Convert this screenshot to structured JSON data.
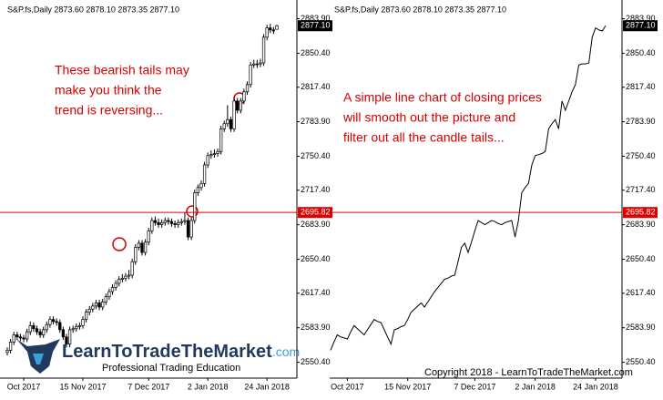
{
  "chart_data": [
    {
      "type": "candlestick",
      "header": "S&P.fs,Daily 2873.60 2878.10 2873.35 2877.10",
      "annotation": [
        "These bearish tails may",
        "make you think the",
        "trend is reversing..."
      ],
      "logo": {
        "name": "LearnToTradeTheMarket",
        "domain": ".com",
        "tagline": "Professional Trading Education"
      },
      "categories": [
        null,
        null,
        null,
        null,
        null,
        "Oct 2017",
        null,
        null,
        null,
        null,
        null,
        null,
        null,
        null,
        null,
        null,
        null,
        null,
        null,
        null,
        null,
        null,
        null,
        "15 Nov 2017",
        null,
        null,
        null,
        null,
        null,
        null,
        null,
        null,
        null,
        null,
        null,
        null,
        null,
        null,
        null,
        null,
        null,
        null,
        null,
        "7 Dec 2017",
        null,
        null,
        null,
        null,
        null,
        null,
        null,
        null,
        null,
        null,
        null,
        null,
        null,
        null,
        null,
        null,
        null,
        "2 Jan 2018",
        null,
        null,
        null,
        null,
        null,
        null,
        null,
        null,
        null,
        null,
        null,
        null,
        null,
        null,
        null,
        null,
        null,
        "24 Jan 2018",
        null,
        null,
        null
      ],
      "open": [
        2560,
        2562,
        2570,
        2577,
        2575,
        2574,
        2573,
        2580,
        2586,
        2583,
        2580,
        2577,
        2582,
        2587,
        2592,
        2590,
        2589,
        2582,
        2575,
        2568,
        2582,
        2583,
        2585,
        2586,
        2592,
        2599,
        2602,
        2605,
        2608,
        2604,
        2609,
        2614,
        2619,
        2623,
        2627,
        2631,
        2632,
        2634,
        2635,
        2648,
        2662,
        2666,
        2657,
        2667,
        2678,
        2688,
        2686,
        2684,
        2686,
        2688,
        2687,
        2685,
        2684,
        2686,
        2687,
        2688,
        2672,
        2688,
        2715,
        2720,
        2724,
        2742,
        2751,
        2752,
        2753,
        2755,
        2777,
        2782,
        2786,
        2777,
        2804,
        2795,
        2804,
        2813,
        2820,
        2839,
        2840,
        2840,
        2841,
        2866,
        2875,
        2873,
        2873.6
      ],
      "high": [
        2565,
        2573,
        2580,
        2580,
        2578,
        2577,
        2583,
        2590,
        2589,
        2586,
        2583,
        2585,
        2590,
        2595,
        2595,
        2593,
        2592,
        2585,
        2578,
        2585,
        2586,
        2588,
        2589,
        2595,
        2602,
        2605,
        2608,
        2611,
        2611,
        2612,
        2617,
        2622,
        2626,
        2630,
        2634,
        2636,
        2637,
        2640,
        2651,
        2665,
        2669,
        2669,
        2670,
        2681,
        2691,
        2692,
        2690,
        2689,
        2691,
        2691,
        2690,
        2688,
        2689,
        2690,
        2696,
        2691,
        2691,
        2718,
        2723,
        2727,
        2745,
        2754,
        2756,
        2757,
        2758,
        2780,
        2785,
        2800,
        2789,
        2807,
        2807,
        2807,
        2816,
        2823,
        2842,
        2844,
        2844,
        2845,
        2869,
        2878,
        2879,
        2876,
        2878.1
      ],
      "low": [
        2557,
        2559,
        2567,
        2572,
        2571,
        2570,
        2570,
        2577,
        2580,
        2577,
        2574,
        2574,
        2579,
        2584,
        2587,
        2586,
        2579,
        2572,
        2565,
        2565,
        2579,
        2580,
        2582,
        2583,
        2589,
        2596,
        2599,
        2602,
        2601,
        2601,
        2606,
        2611,
        2616,
        2620,
        2624,
        2628,
        2629,
        2631,
        2632,
        2645,
        2659,
        2654,
        2654,
        2664,
        2675,
        2683,
        2681,
        2681,
        2683,
        2684,
        2682,
        2681,
        2681,
        2683,
        2684,
        2669,
        2669,
        2685,
        2712,
        2717,
        2721,
        2739,
        2748,
        2749,
        2750,
        2752,
        2774,
        2779,
        2774,
        2774,
        2792,
        2792,
        2801,
        2810,
        2817,
        2836,
        2836,
        2837,
        2838,
        2863,
        2870,
        2869,
        2873.35
      ],
      "close": [
        2562,
        2570,
        2577,
        2575,
        2574,
        2573,
        2580,
        2586,
        2583,
        2580,
        2577,
        2582,
        2587,
        2592,
        2590,
        2589,
        2582,
        2575,
        2568,
        2582,
        2583,
        2585,
        2586,
        2592,
        2599,
        2602,
        2605,
        2608,
        2604,
        2609,
        2614,
        2619,
        2623,
        2627,
        2631,
        2632,
        2634,
        2635,
        2648,
        2662,
        2666,
        2657,
        2667,
        2678,
        2688,
        2686,
        2684,
        2686,
        2688,
        2687,
        2685,
        2684,
        2686,
        2687,
        2688,
        2672,
        2688,
        2715,
        2720,
        2724,
        2742,
        2751,
        2752,
        2753,
        2755,
        2777,
        2782,
        2786,
        2777,
        2804,
        2795,
        2804,
        2813,
        2820,
        2839,
        2840,
        2840,
        2841,
        2866,
        2875,
        2873,
        2872,
        2877.1
      ],
      "ylim": [
        2535,
        2895
      ],
      "yticks": [
        {
          "value": 2550.4,
          "label": "2550.40"
        },
        {
          "value": 2583.9,
          "label": "2583.90"
        },
        {
          "value": 2617.4,
          "label": "2617.40"
        },
        {
          "value": 2650.4,
          "label": "2650.40"
        },
        {
          "value": 2683.9,
          "label": "2683.90"
        },
        {
          "value": 2717.4,
          "label": "2717.40"
        },
        {
          "value": 2750.4,
          "label": "2750.40"
        },
        {
          "value": 2783.9,
          "label": "2783.90"
        },
        {
          "value": 2817.4,
          "label": "2817.40"
        },
        {
          "value": 2850.4,
          "label": "2850.40"
        },
        {
          "value": 2883.9,
          "label": "2883.90"
        }
      ],
      "hline": {
        "value": 2695.82,
        "label": "2695.82",
        "color": "#e00000"
      },
      "last_price": {
        "value": 2877.1,
        "label": "2877.10"
      },
      "color": "#000000"
    },
    {
      "type": "line",
      "header": "S&P.fs,Daily 2873.60 2878.10 2873.35 2877.10",
      "annotation": [
        "A simple line chart of closing prices",
        "will smooth out the picture and",
        "filter out all the candle tails..."
      ],
      "footer": "Copyright 2018 - LearnToTradeTheMarket.com",
      "categories": [
        null,
        null,
        null,
        null,
        null,
        "Oct 2017",
        null,
        null,
        null,
        null,
        null,
        null,
        null,
        null,
        null,
        null,
        null,
        null,
        null,
        null,
        null,
        null,
        null,
        "15 Nov 2017",
        null,
        null,
        null,
        null,
        null,
        null,
        null,
        null,
        null,
        null,
        null,
        null,
        null,
        null,
        null,
        null,
        null,
        null,
        null,
        "7 Dec 2017",
        null,
        null,
        null,
        null,
        null,
        null,
        null,
        null,
        null,
        null,
        null,
        null,
        null,
        null,
        null,
        null,
        null,
        "2 Jan 2018",
        null,
        null,
        null,
        null,
        null,
        null,
        null,
        null,
        null,
        null,
        null,
        null,
        null,
        null,
        null,
        null,
        null,
        "24 Jan 2018",
        null,
        null,
        null
      ],
      "values": [
        2562,
        2570,
        2577,
        2575,
        2574,
        2573,
        2580,
        2586,
        2583,
        2580,
        2577,
        2582,
        2587,
        2592,
        2590,
        2589,
        2582,
        2575,
        2568,
        2582,
        2583,
        2585,
        2586,
        2592,
        2599,
        2602,
        2605,
        2608,
        2604,
        2609,
        2614,
        2619,
        2623,
        2627,
        2631,
        2632,
        2634,
        2635,
        2648,
        2662,
        2666,
        2657,
        2667,
        2678,
        2688,
        2686,
        2684,
        2686,
        2688,
        2687,
        2685,
        2684,
        2686,
        2687,
        2688,
        2672,
        2688,
        2715,
        2720,
        2724,
        2742,
        2751,
        2752,
        2753,
        2755,
        2777,
        2782,
        2786,
        2777,
        2804,
        2795,
        2804,
        2813,
        2820,
        2839,
        2840,
        2840,
        2841,
        2866,
        2875,
        2873,
        2872,
        2877.1
      ],
      "ylim": [
        2535,
        2895
      ],
      "yticks": [
        {
          "value": 2550.4,
          "label": "2550.40"
        },
        {
          "value": 2583.9,
          "label": "2583.90"
        },
        {
          "value": 2617.4,
          "label": "2617.40"
        },
        {
          "value": 2650.4,
          "label": "2650.40"
        },
        {
          "value": 2683.9,
          "label": "2683.90"
        },
        {
          "value": 2717.4,
          "label": "2717.40"
        },
        {
          "value": 2750.4,
          "label": "2750.40"
        },
        {
          "value": 2783.9,
          "label": "2783.90"
        },
        {
          "value": 2817.4,
          "label": "2817.40"
        },
        {
          "value": 2850.4,
          "label": "2850.40"
        },
        {
          "value": 2883.9,
          "label": "2883.90"
        }
      ],
      "hline": {
        "value": 2695.82,
        "label": "2695.82",
        "color": "#e00000"
      },
      "last_price": {
        "value": 2877.1,
        "label": "2877.10"
      },
      "color": "#000000"
    }
  ]
}
